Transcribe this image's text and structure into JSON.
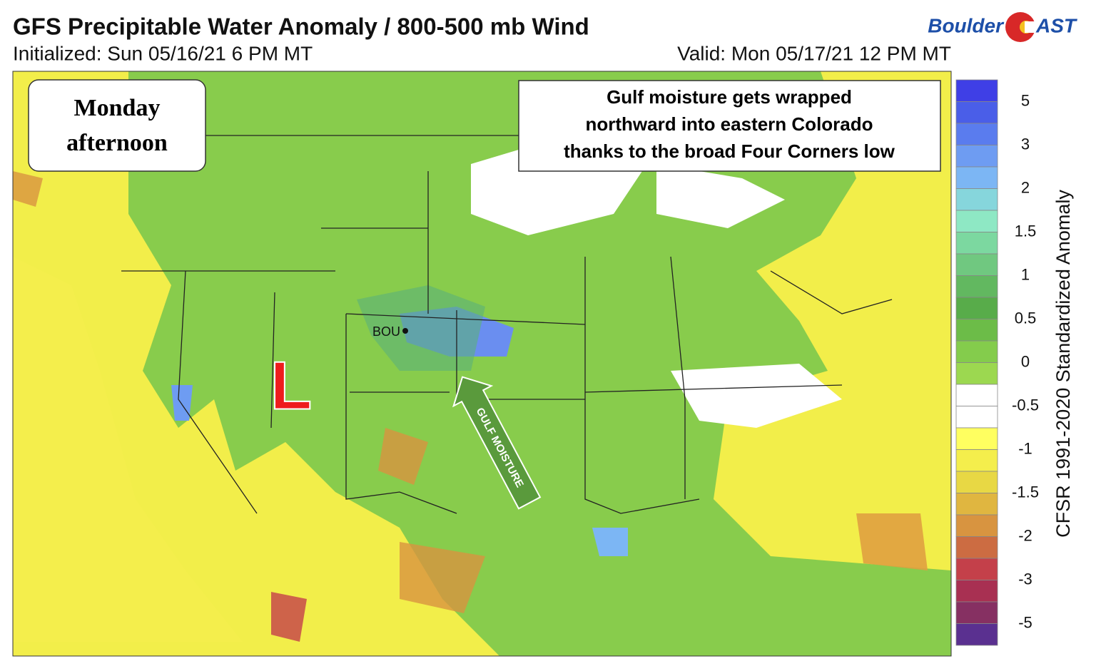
{
  "header": {
    "title": "GFS Precipitable Water Anomaly / 800-500 mb Wind",
    "initialized": "Initialized: Sun 05/16/21 6 PM MT",
    "valid": "Valid: Mon 05/17/21 12 PM MT"
  },
  "logo": {
    "left": "Boulder",
    "right": "AST"
  },
  "annotations": {
    "day": [
      "Monday",
      "afternoon"
    ],
    "note": [
      "Gulf moisture gets wrapped",
      "northward into eastern Colorado",
      "thanks to the broad Four Corners low"
    ],
    "station": "BOU",
    "low": "L",
    "arrow": "GULF MOISTURE"
  },
  "colorbar": {
    "title": "CFSR 1991-2020 Standardized Anomaly",
    "ticks": [
      5,
      3,
      2,
      1.5,
      1,
      0.5,
      0,
      -0.5,
      -1,
      -1.5,
      -2,
      -3,
      -5
    ],
    "colors": [
      "#3f3fe6",
      "#4a5ee8",
      "#5a7cee",
      "#6e9cf2",
      "#7cb6f4",
      "#86d6dc",
      "#8ee8c4",
      "#7cd8a0",
      "#70c880",
      "#62b860",
      "#58ac4a",
      "#6cbc48",
      "#84cc4c",
      "#9cd850",
      "#ffffff",
      "#ffffff",
      "#ffff60",
      "#f4ee4c",
      "#e8d844",
      "#e0b640",
      "#d89440",
      "#cc6c42",
      "#c4404a",
      "#a83052",
      "#863062",
      "#5a3090"
    ]
  }
}
